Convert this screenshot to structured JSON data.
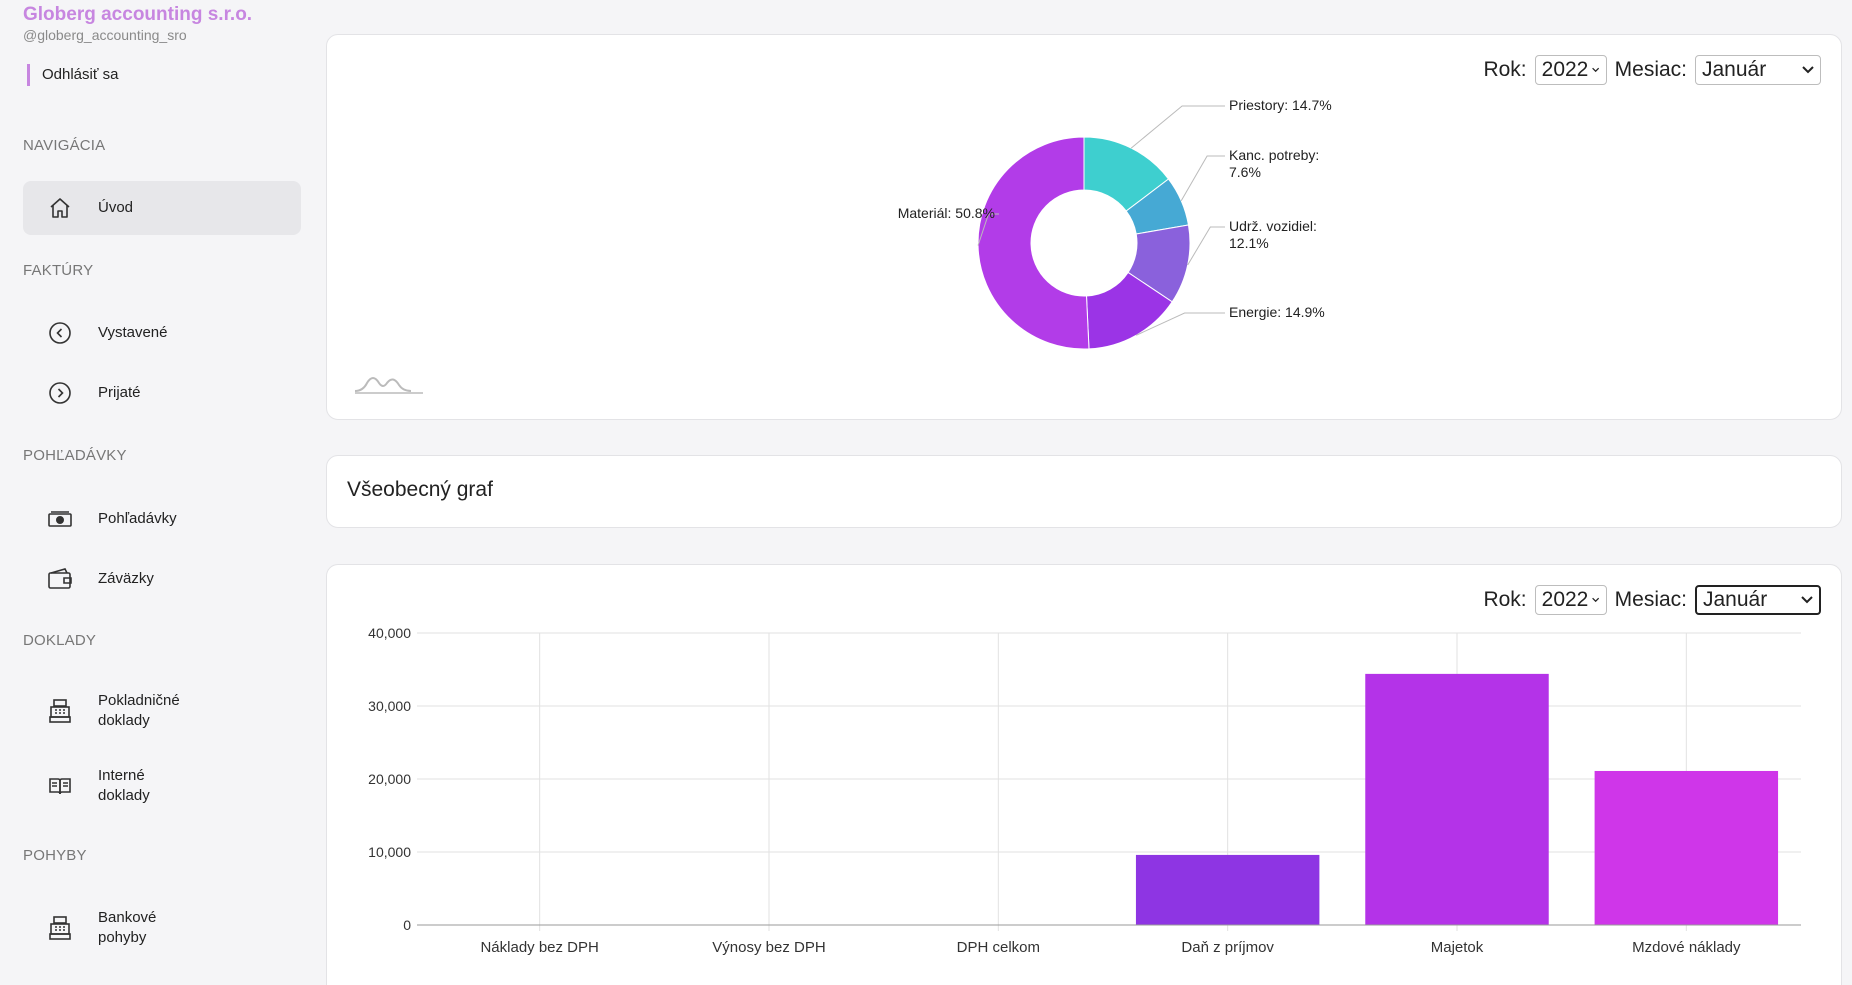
{
  "company": {
    "name": "Globerg accounting s.r.o.",
    "handle": "@globerg_accounting_sro"
  },
  "logout_label": "Odhlásiť sa",
  "nav": {
    "sec_nav": "NAVIGÁCIA",
    "uvod": "Úvod",
    "sec_faktury": "FAKTÚRY",
    "vystavene": "Vystavené",
    "prijate": "Prijaté",
    "sec_pohladavky": "POHĽADÁVKY",
    "pohladavky": "Pohľadávky",
    "zavazky": "Záväzky",
    "sec_doklady": "DOKLADY",
    "pokladnicne_1": "Pokladničné",
    "pokladnicne_2": "doklady",
    "interne_1": "Interné",
    "interne_2": "doklady",
    "sec_pohyby": "POHYBY",
    "bankove_1": "Bankové",
    "bankove_2": "pohyby"
  },
  "filters": {
    "year_label": "Rok:",
    "year_value": "2022",
    "month_label": "Mesiac:",
    "month_value": "Január"
  },
  "general_chart_title": "Všeobecný graf",
  "colors": {
    "accent": "#c786e0",
    "pie": [
      "#3ecfcf",
      "#46a9d4",
      "#8a61dc",
      "#9b34e6",
      "#b23ce8"
    ],
    "bar": [
      "#8e35e3",
      "#b433e8",
      "#cf36e9"
    ]
  },
  "chart_data": [
    {
      "type": "pie",
      "slices": [
        {
          "label": "Priestory: 14.7%",
          "value": 14.7
        },
        {
          "label_lines": [
            "Kanc. potreby:",
            "7.6%"
          ],
          "value": 7.6
        },
        {
          "label_lines": [
            "Udrž. vozidiel:",
            "12.1%"
          ],
          "value": 12.1
        },
        {
          "label": "Energie: 14.9%",
          "value": 14.9
        },
        {
          "label": "Materiál: 50.8%",
          "value": 50.8
        }
      ]
    },
    {
      "type": "bar",
      "categories": [
        "Náklady bez DPH",
        "Výnosy bez DPH",
        "DPH celkom",
        "Daň z príjmov",
        "Majetok",
        "Mzdové náklady"
      ],
      "values": [
        0,
        0,
        0,
        9600,
        34400,
        21100
      ],
      "ylim": [
        0,
        40000
      ],
      "yticks": [
        "0",
        "10,000",
        "20,000",
        "30,000",
        "40,000"
      ],
      "grid": true
    }
  ]
}
